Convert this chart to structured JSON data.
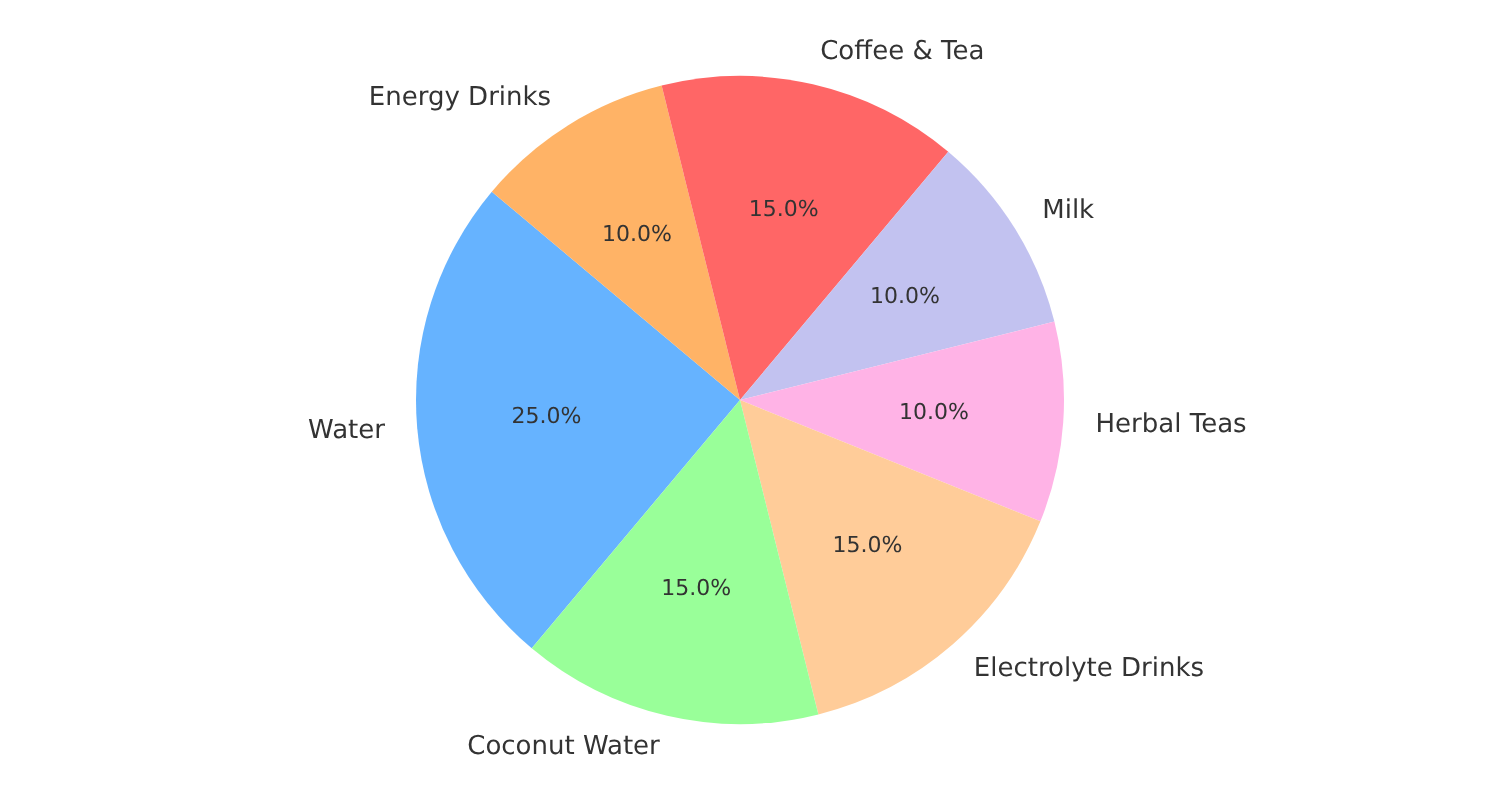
{
  "chart_data": {
    "type": "pie",
    "categories": [
      "Water",
      "Energy Drinks",
      "Coffee & Tea",
      "Milk",
      "Herbal Teas",
      "Electrolyte Drinks",
      "Coconut Water"
    ],
    "values": [
      25,
      10,
      15,
      10,
      10,
      15,
      15
    ],
    "colors": [
      "#66b3ff",
      "#ffb366",
      "#ff6666",
      "#c2c2f0",
      "#ffb3e6",
      "#ffcc99",
      "#99ff99"
    ],
    "value_labels": [
      "25.0%",
      "10.0%",
      "15.0%",
      "10.0%",
      "10.0%",
      "15.0%",
      "15.0%"
    ]
  }
}
